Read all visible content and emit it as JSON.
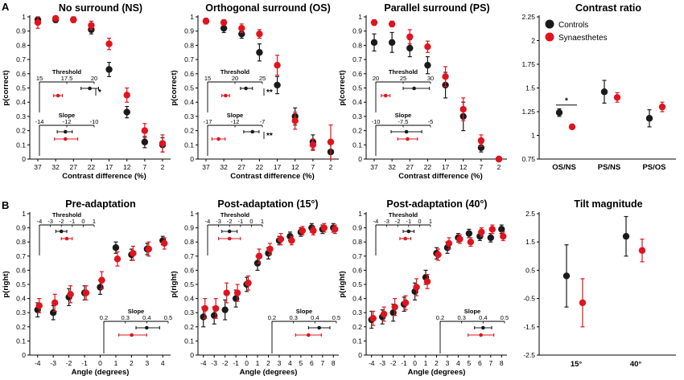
{
  "colors": {
    "controls": "#1a1a1a",
    "synaesthetes": "#e0141e"
  },
  "panel_letters": [
    "A",
    "B"
  ],
  "legend": {
    "controls": "Controls",
    "synaesthetes": "Synaesthetes"
  },
  "chart_data": [
    {
      "id": "ns",
      "type": "scatter",
      "title": "No surround (NS)",
      "xlabel": "Contrast difference (%)",
      "ylabel": "p(correct)",
      "categories": [
        "37",
        "32",
        "27",
        "22",
        "17",
        "12",
        "7",
        "2"
      ],
      "ylim": [
        0,
        1
      ],
      "yticks": [
        "0",
        "0.1",
        "0.2",
        "0.3",
        "0.4",
        "0.5",
        "0.6",
        "0.7",
        "0.8",
        "0.9",
        "1"
      ],
      "series": [
        {
          "name": "Controls",
          "values": [
            0.98,
            0.98,
            0.98,
            0.91,
            0.63,
            0.33,
            0.12,
            0.1
          ],
          "err": [
            0.02,
            0.02,
            0.02,
            0.03,
            0.05,
            0.04,
            0.04,
            0.05
          ]
        },
        {
          "name": "Synaesthetes",
          "values": [
            0.96,
            0.99,
            0.98,
            0.94,
            0.81,
            0.45,
            0.2,
            0.11
          ],
          "err": [
            0.04,
            0.01,
            0.02,
            0.03,
            0.04,
            0.05,
            0.05,
            0.06
          ]
        }
      ],
      "insets": [
        {
          "label": "Threshold",
          "ticks": [
            "15",
            "17.5",
            "20"
          ],
          "range": [
            15,
            20
          ],
          "controls": [
            19.6,
            18.8,
            20.4
          ],
          "synaesthetes": [
            16.7,
            16.3,
            17.1
          ],
          "star": "*"
        },
        {
          "label": "Slope",
          "ticks": [
            "-14",
            "-12",
            "-10"
          ],
          "range": [
            -14,
            -10
          ],
          "controls": [
            -12.1,
            -12.7,
            -11.6
          ],
          "synaesthetes": [
            -12.1,
            -12.9,
            -11.2
          ],
          "star": ""
        }
      ]
    },
    {
      "id": "os",
      "type": "scatter",
      "title": "Orthogonal surround (OS)",
      "xlabel": "Contrast difference (%)",
      "ylabel": "p(correct)",
      "categories": [
        "37",
        "32",
        "27",
        "22",
        "17",
        "12",
        "7",
        "2"
      ],
      "ylim": [
        0,
        1
      ],
      "yticks": [
        "0",
        "0.1",
        "0.2",
        "0.3",
        "0.4",
        "0.5",
        "0.6",
        "0.7",
        "0.8",
        "0.9",
        "1"
      ],
      "series": [
        {
          "name": "Controls",
          "values": [
            0.97,
            0.92,
            0.88,
            0.75,
            0.52,
            0.3,
            0.12,
            0.05
          ],
          "err": [
            0.02,
            0.03,
            0.03,
            0.06,
            0.06,
            0.06,
            0.05,
            0.07
          ]
        },
        {
          "name": "Synaesthetes",
          "values": [
            0.97,
            0.96,
            0.92,
            0.88,
            0.66,
            0.27,
            0.1,
            0.12
          ],
          "err": [
            0.02,
            0.02,
            0.03,
            0.03,
            0.07,
            0.06,
            0.04,
            0.12
          ]
        }
      ],
      "insets": [
        {
          "label": "Threshold",
          "ticks": [
            "15",
            "20",
            "25"
          ],
          "range": [
            15,
            25
          ],
          "controls": [
            22.0,
            21.0,
            23.2
          ],
          "synaesthetes": [
            18.3,
            17.6,
            19.0
          ],
          "star": "**"
        },
        {
          "label": "Slope",
          "ticks": [
            "-17",
            "-12",
            "-7"
          ],
          "range": [
            -17,
            -7
          ],
          "controls": [
            -8.8,
            -10.4,
            -7.6
          ],
          "synaesthetes": [
            -15.0,
            -16.2,
            -13.8
          ],
          "star": "**"
        }
      ]
    },
    {
      "id": "ps",
      "type": "scatter",
      "title": "Parallel surround (PS)",
      "xlabel": "Contrast difference (%)",
      "ylabel": "p(correct)",
      "categories": [
        "37",
        "32",
        "27",
        "22",
        "17",
        "12",
        "7",
        "2"
      ],
      "ylim": [
        0,
        1
      ],
      "yticks": [
        "0",
        "0.1",
        "0.2",
        "0.3",
        "0.4",
        "0.5",
        "0.6",
        "0.7",
        "0.8",
        "0.9",
        "1"
      ],
      "series": [
        {
          "name": "Controls",
          "values": [
            0.82,
            0.82,
            0.78,
            0.66,
            0.52,
            0.3,
            0.08,
            0.0
          ],
          "err": [
            0.06,
            0.07,
            0.06,
            0.06,
            0.09,
            0.1,
            0.03,
            0.01
          ]
        },
        {
          "name": "Synaesthetes",
          "values": [
            0.96,
            0.95,
            0.86,
            0.79,
            0.58,
            0.35,
            0.13,
            0.0
          ],
          "err": [
            0.02,
            0.02,
            0.05,
            0.04,
            0.07,
            0.08,
            0.04,
            0.01
          ]
        }
      ],
      "insets": [
        {
          "label": "Threshold",
          "ticks": [
            "20",
            "25",
            "30"
          ],
          "range": [
            20,
            30
          ],
          "controls": [
            27.0,
            25.0,
            29.8
          ],
          "synaesthetes": [
            21.8,
            21.0,
            22.6
          ],
          "star": ""
        },
        {
          "label": "Slope",
          "ticks": [
            "-10",
            "-7.5",
            "-5"
          ],
          "range": [
            -10,
            -5
          ],
          "controls": [
            -7.2,
            -8.6,
            -5.8
          ],
          "synaesthetes": [
            -7.1,
            -8.0,
            -6.2
          ],
          "star": ""
        }
      ]
    },
    {
      "id": "ratio",
      "type": "scatter",
      "title": "Contrast ratio",
      "categories": [
        "OS/NS",
        "PS/NS",
        "PS/OS"
      ],
      "ylim": [
        0.75,
        2.25
      ],
      "yticks": [
        "0.75",
        "1",
        "1.25",
        "1.5",
        "1.75",
        "2",
        "2.25"
      ],
      "series": [
        {
          "name": "Controls",
          "values": [
            1.24,
            1.46,
            1.18
          ],
          "err": [
            0.04,
            0.12,
            0.09
          ]
        },
        {
          "name": "Synaesthetes",
          "values": [
            1.09,
            1.4,
            1.3
          ],
          "err": [
            0.02,
            0.05,
            0.05
          ]
        }
      ],
      "annotation": "*"
    },
    {
      "id": "pre",
      "type": "scatter",
      "title": "Pre-adaptation",
      "xlabel": "Angle (degrees)",
      "ylabel": "p(right)",
      "x": [
        -4,
        -3,
        -2,
        -1,
        0,
        1,
        2,
        3,
        4
      ],
      "xlim": [
        -4.5,
        4.5
      ],
      "xticks": [
        "-4",
        "-3",
        "-2",
        "-1",
        "0",
        "1",
        "2",
        "3",
        "4"
      ],
      "ylim": [
        0,
        1
      ],
      "yticks": [
        "0",
        "0.1",
        "0.2",
        "0.3",
        "0.4",
        "0.5",
        "0.6",
        "0.7",
        "0.8",
        "0.9",
        "1"
      ],
      "series": [
        {
          "name": "Controls",
          "x": [
            -4,
            -3,
            -2,
            -1,
            0,
            1,
            2,
            3,
            4
          ],
          "values": [
            0.32,
            0.3,
            0.41,
            0.44,
            0.48,
            0.76,
            0.71,
            0.75,
            0.81
          ],
          "err": [
            0.05,
            0.05,
            0.06,
            0.05,
            0.05,
            0.04,
            0.04,
            0.04,
            0.03
          ]
        },
        {
          "name": "Synaesthetes",
          "x": [
            -4,
            -3,
            -2,
            -1,
            0,
            1,
            2,
            3,
            4
          ],
          "values": [
            0.35,
            0.37,
            0.43,
            0.44,
            0.53,
            0.68,
            0.72,
            0.75,
            0.79
          ],
          "err": [
            0.05,
            0.06,
            0.06,
            0.05,
            0.06,
            0.05,
            0.05,
            0.05,
            0.04
          ]
        }
      ],
      "insets": [
        {
          "label": "Threshold",
          "ticks": [
            "-4",
            "-3",
            "-2",
            "-1",
            "0",
            "1"
          ],
          "range": [
            -4,
            1
          ],
          "controls": [
            -2.0,
            -2.5,
            -1.5
          ],
          "synaesthetes": [
            -1.5,
            -2.0,
            -1.0
          ]
        },
        {
          "label": "Slope",
          "ticks": [
            "0.2",
            "0.3",
            "0.4",
            "0.5"
          ],
          "range": [
            0.2,
            0.5
          ],
          "controls": [
            0.4,
            0.35,
            0.46
          ],
          "synaesthetes": [
            0.33,
            0.27,
            0.4
          ]
        }
      ]
    },
    {
      "id": "post15",
      "type": "scatter",
      "title": "Post-adaptation (15°)",
      "xlabel": "Angle (degrees)",
      "ylabel": "p(right)",
      "x": [
        -4,
        -3,
        -2,
        -1,
        0,
        1,
        2,
        3,
        4,
        5,
        6,
        7,
        8
      ],
      "xlim": [
        -4.5,
        8.5
      ],
      "xticks": [
        "-4",
        "-3",
        "-2",
        "-1",
        "0",
        "1",
        "2",
        "3",
        "4",
        "5",
        "6",
        "7",
        "8"
      ],
      "ylim": [
        0,
        1
      ],
      "yticks": [
        "0",
        "0.1",
        "0.2",
        "0.3",
        "0.4",
        "0.5",
        "0.6",
        "0.7",
        "0.8",
        "0.9",
        "1"
      ],
      "series": [
        {
          "name": "Controls",
          "x": [
            -4,
            -3,
            -2,
            -1,
            0,
            1,
            2,
            3,
            4,
            5,
            6,
            7,
            8
          ],
          "values": [
            0.27,
            0.28,
            0.32,
            0.4,
            0.5,
            0.65,
            0.72,
            0.81,
            0.84,
            0.87,
            0.9,
            0.89,
            0.9
          ],
          "err": [
            0.07,
            0.06,
            0.07,
            0.06,
            0.05,
            0.05,
            0.04,
            0.03,
            0.03,
            0.03,
            0.03,
            0.03,
            0.03
          ]
        },
        {
          "name": "Synaesthetes",
          "x": [
            -4,
            -3,
            -2,
            -1,
            0,
            1,
            2,
            3,
            4,
            5,
            6,
            7,
            8
          ],
          "values": [
            0.33,
            0.33,
            0.44,
            0.44,
            0.51,
            0.7,
            0.75,
            0.82,
            0.81,
            0.88,
            0.88,
            0.9,
            0.89
          ],
          "err": [
            0.07,
            0.07,
            0.07,
            0.06,
            0.05,
            0.05,
            0.04,
            0.04,
            0.03,
            0.03,
            0.03,
            0.03,
            0.03
          ]
        }
      ],
      "insets": [
        {
          "label": "Threshold",
          "ticks": [
            "-4",
            "-3",
            "-2",
            "-1",
            "0",
            "1"
          ],
          "range": [
            -4,
            1
          ],
          "controls": [
            -2.0,
            -2.7,
            -1.3
          ],
          "synaesthetes": [
            -2.0,
            -3.0,
            -1.0
          ]
        },
        {
          "label": "Slope",
          "ticks": [
            "0.2",
            "0.3",
            "0.4",
            "0.5"
          ],
          "range": [
            0.2,
            0.5
          ],
          "controls": [
            0.42,
            0.37,
            0.47
          ],
          "synaesthetes": [
            0.37,
            0.31,
            0.43
          ]
        }
      ]
    },
    {
      "id": "post40",
      "type": "scatter",
      "title": "Post-adaptation (40°)",
      "xlabel": "Angle (degrees)",
      "ylabel": "p(right)",
      "x": [
        -4,
        -3,
        -2,
        -1,
        0,
        1,
        2,
        3,
        4,
        5,
        6,
        7,
        8
      ],
      "xlim": [
        -4.5,
        8.5
      ],
      "xticks": [
        "-4",
        "-3",
        "-2",
        "-1",
        "0",
        "1",
        "2",
        "3",
        "4",
        "5",
        "6",
        "7",
        "8"
      ],
      "ylim": [
        0,
        1
      ],
      "yticks": [
        "0",
        "0.1",
        "0.2",
        "0.3",
        "0.4",
        "0.5",
        "0.6",
        "0.7",
        "0.8",
        "0.9",
        "1"
      ],
      "series": [
        {
          "name": "Controls",
          "x": [
            -4,
            -3,
            -2,
            -1,
            0,
            1,
            2,
            3,
            4,
            5,
            6,
            7,
            8
          ],
          "values": [
            0.25,
            0.27,
            0.3,
            0.36,
            0.45,
            0.55,
            0.72,
            0.76,
            0.83,
            0.86,
            0.84,
            0.83,
            0.89
          ],
          "err": [
            0.06,
            0.05,
            0.06,
            0.05,
            0.06,
            0.05,
            0.04,
            0.04,
            0.03,
            0.03,
            0.03,
            0.03,
            0.03
          ]
        },
        {
          "name": "Synaesthetes",
          "x": [
            -4,
            -3,
            -2,
            -1,
            0,
            1,
            2,
            3,
            4,
            5,
            6,
            7,
            8
          ],
          "values": [
            0.26,
            0.29,
            0.34,
            0.37,
            0.48,
            0.52,
            0.71,
            0.79,
            0.82,
            0.8,
            0.87,
            0.89,
            0.84
          ],
          "err": [
            0.05,
            0.05,
            0.06,
            0.05,
            0.06,
            0.05,
            0.04,
            0.04,
            0.03,
            0.03,
            0.03,
            0.03,
            0.03
          ]
        }
      ],
      "insets": [
        {
          "label": "Threshold",
          "ticks": [
            "-4",
            "-3",
            "-2",
            "-1",
            "0",
            "1"
          ],
          "range": [
            -4,
            1
          ],
          "controls": [
            -1.0,
            -1.5,
            -0.5
          ],
          "synaesthetes": [
            -1.3,
            -1.8,
            -0.8
          ]
        },
        {
          "label": "Slope",
          "ticks": [
            "0.2",
            "0.3",
            "0.4",
            "0.5"
          ],
          "range": [
            0.2,
            0.5
          ],
          "controls": [
            0.4,
            0.36,
            0.44
          ],
          "synaesthetes": [
            0.39,
            0.33,
            0.45
          ]
        }
      ]
    },
    {
      "id": "tilt",
      "type": "scatter",
      "title": "Tilt magnitude",
      "categories": [
        "15°",
        "40°"
      ],
      "ylim": [
        -2.5,
        2.5
      ],
      "yticks": [
        "-2.5",
        "-1.5",
        "-0.5",
        "0.5",
        "1.5",
        "2.5"
      ],
      "series": [
        {
          "name": "Controls",
          "values": [
            0.3,
            1.7
          ],
          "err": [
            1.1,
            0.7
          ]
        },
        {
          "name": "Synaesthetes",
          "values": [
            -0.65,
            1.2
          ],
          "err": [
            0.85,
            0.4
          ]
        }
      ]
    }
  ]
}
